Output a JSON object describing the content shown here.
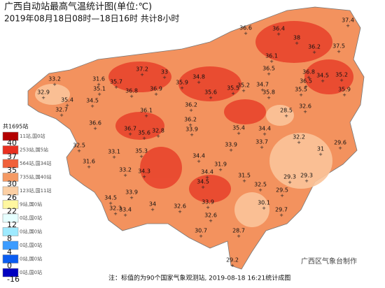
{
  "title": "广西自动站最高气温统计图(单位:℃)",
  "subtitle": "2019年08月18日08时—18日16时  共计8小时",
  "legend": {
    "total": "共1695站",
    "boxes": [
      {
        "color": "#b30000",
        "count": "11站,国0站"
      },
      {
        "color": "#e83020",
        "count": "253站,国5站"
      },
      {
        "color": "#f0603a",
        "count": "564站,国34站"
      },
      {
        "color": "#f59a64",
        "count": "735站,国40站"
      },
      {
        "color": "#fccfa4",
        "count": "123站,国11站"
      },
      {
        "color": "#fff7a0",
        "count": "9站,国0站"
      },
      {
        "color": "#e6ffff",
        "count": "0站,国0站"
      },
      {
        "color": "#9eeaff",
        "count": "0站,国0站"
      },
      {
        "color": "#3c9cff",
        "count": "0站,国0站"
      },
      {
        "color": "#0a5cf0",
        "count": "0站,国0站"
      },
      {
        "color": "#0000c0",
        "count": "0站,国0站"
      }
    ],
    "thresholds": [
      40,
      37,
      35,
      30,
      26,
      22,
      12,
      8,
      4,
      0,
      -16
    ]
  },
  "stations": [
    33.2,
    32.9,
    37.2,
    33,
    31.6,
    35.1,
    35.7,
    36.8,
    36.9,
    35.9,
    34.8,
    35.6,
    36.2,
    35.5,
    35.2,
    34.7,
    36.6,
    36.4,
    38,
    36.2,
    37.4,
    37.5,
    36.1,
    36.5,
    36.8,
    34.5,
    35.2,
    36.5,
    35.5,
    35.9,
    35.8,
    28.5,
    32.6,
    35.4,
    32.7,
    34.5,
    36.1,
    36.6,
    36.7,
    35.6,
    32.8,
    36.2,
    33.9,
    35.4,
    34.4,
    33.9,
    33.7,
    32.2,
    29.6,
    31,
    32.5,
    33.1,
    31.6,
    35.3,
    34.3,
    33.2,
    34.4,
    34.5,
    31.9,
    31.5,
    34.4,
    29.3,
    29.3,
    32.5,
    29.5,
    33.9,
    33.4,
    34.5,
    32.3,
    34,
    32.6,
    33.9,
    29.7,
    30.1,
    32.6,
    30.7,
    28.7,
    29.2
  ],
  "footer": "注：标值的为90个国家气象观测站, 2019-08-18 16:21统计成图",
  "credit": "广西区气象台制作"
}
